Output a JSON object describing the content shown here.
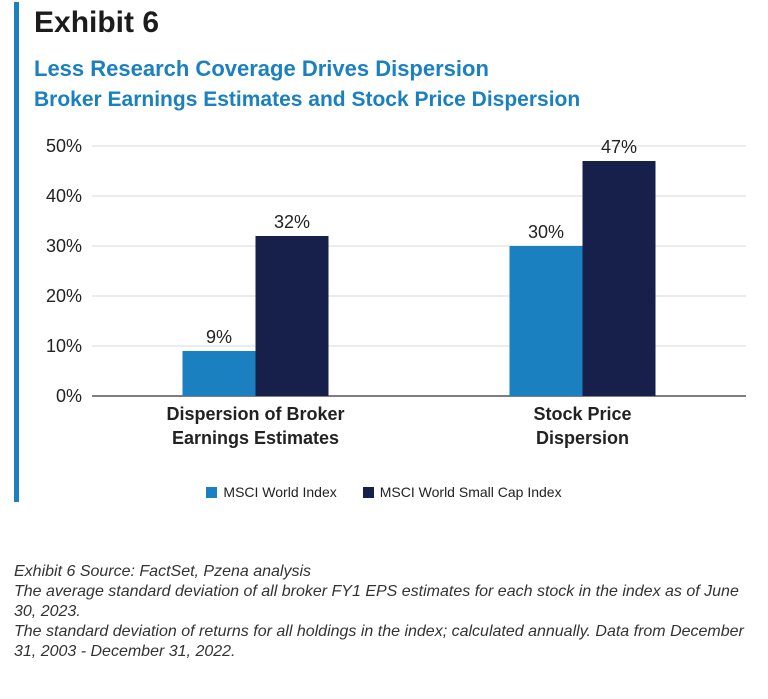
{
  "header": {
    "exhibit_label": "Exhibit 6",
    "title": "Less Research Coverage Drives Dispersion",
    "subtitle": "Broker Earnings Estimates and Stock Price Dispersion"
  },
  "colors": {
    "accent": "#1a80bf",
    "series1": "#1a80bf",
    "series2": "#16204a"
  },
  "chart_data": {
    "type": "bar",
    "categories": [
      [
        "Dispersion of Broker",
        "Earnings Estimates"
      ],
      [
        "Stock Price",
        "Dispersion"
      ]
    ],
    "series": [
      {
        "name": "MSCI World Index",
        "values": [
          9,
          30
        ],
        "labels": [
          "9%",
          "30%"
        ]
      },
      {
        "name": "MSCI World Small Cap Index",
        "values": [
          32,
          47
        ],
        "labels": [
          "32%",
          "47%"
        ]
      }
    ],
    "ylim": [
      0,
      50
    ],
    "yticks": [
      0,
      10,
      20,
      30,
      40,
      50
    ],
    "ytick_labels": [
      "0%",
      "10%",
      "20%",
      "30%",
      "40%",
      "50%"
    ],
    "grid": true,
    "legend_position": "bottom"
  },
  "footnotes": [
    "Exhibit 6 Source: FactSet, Pzena analysis",
    "The average standard deviation of all broker FY1 EPS estimates for each stock in the index as of June 30, 2023.",
    "The standard deviation of returns for all holdings in the index; calculated annually. Data from December 31, 2003 - December 31, 2022."
  ]
}
